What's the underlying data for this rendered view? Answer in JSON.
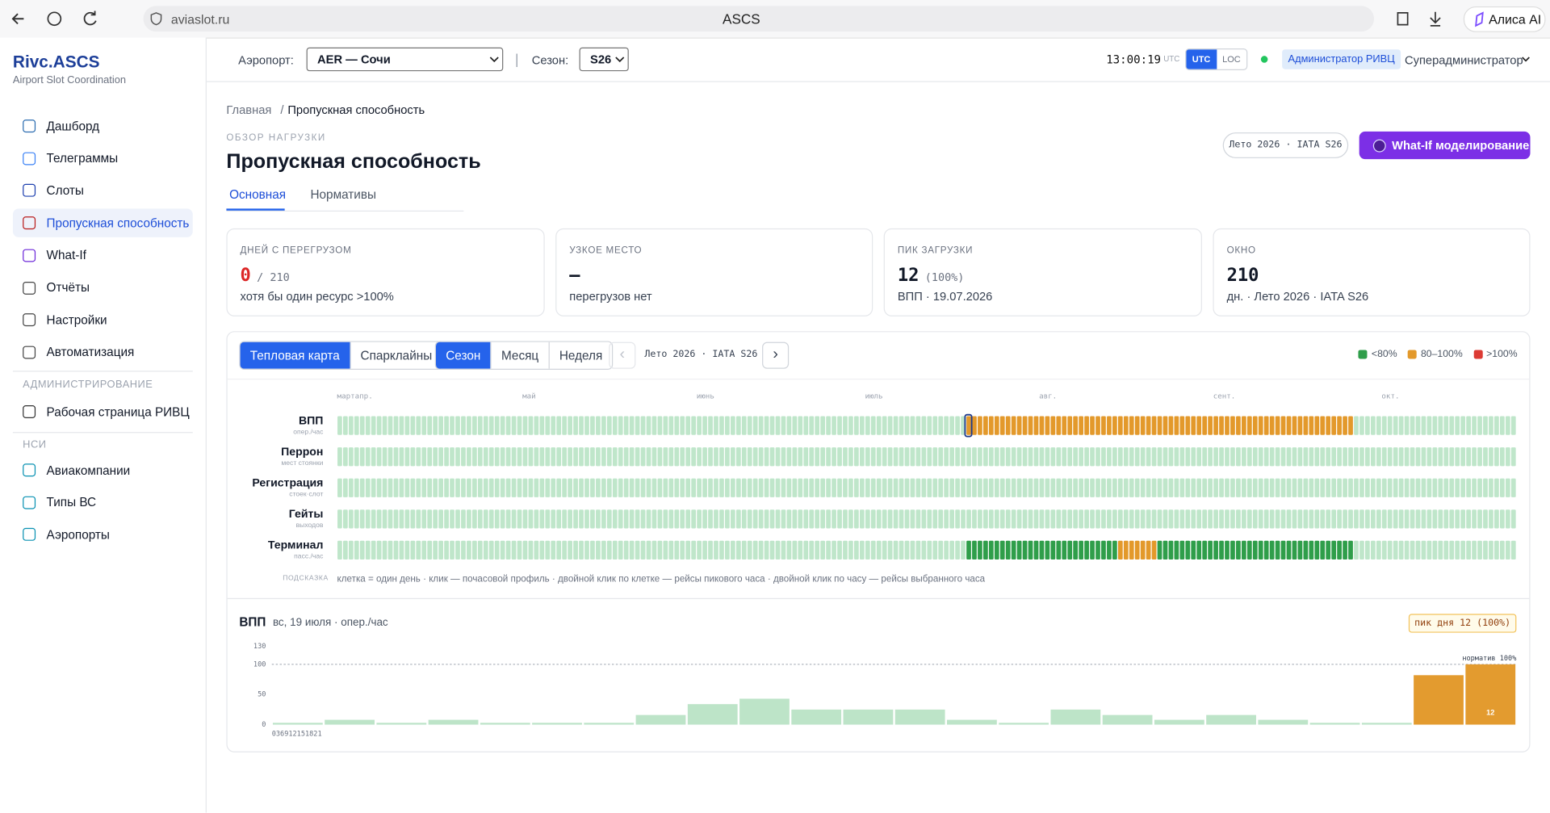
{
  "browser": {
    "url": "aviaslot.ru",
    "title": "ASCS",
    "assistant": "Алиса AI"
  },
  "sidebar": {
    "brand": "Rivc.ASCS",
    "tagline": "Airport Slot Coordination",
    "items": [
      "Дашборд",
      "Телеграммы",
      "Слоты",
      "Пропускная способность",
      "What-If",
      "Отчёты",
      "Настройки",
      "Автоматизация"
    ],
    "active_item": 3,
    "admin_heading": "АДМИНИСТРИРОВАНИЕ",
    "admin_items": [
      "Рабочая страница РИВЦ"
    ],
    "nsi_heading": "НСИ",
    "nsi_items": [
      "Авиакомпании",
      "Типы ВС",
      "Аэропорты"
    ]
  },
  "topbar": {
    "airport_label": "Аэропорт:",
    "airport": "AER — Сочи",
    "season_label": "Сезон:",
    "season": "S26",
    "time": "13:00:19",
    "time_zone": "UTC",
    "modes": [
      "UTC",
      "LOC"
    ],
    "role": "Администратор РИВЦ",
    "user": "Суперадминистратор"
  },
  "page": {
    "breadcrumb": [
      "Главная",
      "Пропускная способность"
    ],
    "overline": "ОБЗОР НАГРУЗКИ",
    "title": "Пропускная способность",
    "season_chip": "Лето 2026 · IATA S26",
    "whatif_button": "What-If моделирование",
    "tabs": [
      "Основная",
      "Нормативы"
    ]
  },
  "cards": [
    {
      "label": "ДНЕЙ С ПЕРЕГРУЗОМ",
      "value": "0",
      "suffix": "/ 210",
      "note": "хотя бы один ресурс >100%"
    },
    {
      "label": "УЗКОЕ МЕСТО",
      "value": "—",
      "note": "перегрузов нет"
    },
    {
      "label": "ПИК ЗАГРУЗКИ",
      "value": "12",
      "suffix": "(100%)",
      "note": "ВПП · 19.07.2026"
    },
    {
      "label": "ОКНО",
      "value": "210",
      "note": "дн. · Лето 2026 · IATA S26"
    }
  ],
  "heatmap": {
    "view_modes": [
      "Тепловая карта",
      "Спарклайны"
    ],
    "periods": [
      "Сезон",
      "Месяц",
      "Неделя"
    ],
    "period_label": "Лето 2026 · IATA S26",
    "levels": [
      {
        "color": "#bfe6ca"
      },
      {
        "label": "<80%",
        "color": "#2f9e4a"
      },
      {
        "label": "80–100%",
        "color": "#e3992b"
      },
      {
        "label": ">100%",
        "color": "#dc3b34"
      }
    ],
    "days": 210,
    "months": [
      {
        "label": "март",
        "day": 0
      },
      {
        "label": "апр.",
        "day": 3
      },
      {
        "label": "май",
        "day": 33
      },
      {
        "label": "июнь",
        "day": 64
      },
      {
        "label": "июль",
        "day": 94
      },
      {
        "label": "авг.",
        "day": 125
      },
      {
        "label": "сент.",
        "day": 156
      },
      {
        "label": "окт.",
        "day": 186
      }
    ],
    "selected_day": 112,
    "rows": [
      {
        "name": "ВПП",
        "unit": "опер./час",
        "runs": [
          [
            112,
            0
          ],
          [
            69,
            2
          ],
          [
            29,
            0
          ]
        ]
      },
      {
        "name": "Перрон",
        "unit": "мест стоянки",
        "runs": [
          [
            210,
            0
          ]
        ]
      },
      {
        "name": "Регистрация",
        "unit": "стоек·слот",
        "runs": [
          [
            210,
            0
          ]
        ]
      },
      {
        "name": "Гейты",
        "unit": "выходов",
        "runs": [
          [
            210,
            0
          ]
        ]
      },
      {
        "name": "Терминал",
        "unit": "пасс./час",
        "runs": [
          [
            112,
            0
          ],
          [
            27,
            1
          ],
          [
            7,
            2
          ],
          [
            35,
            1
          ],
          [
            29,
            0
          ]
        ]
      }
    ],
    "hint_label": "ПОДСКАЗКА",
    "hint": "клетка = один день · клик — почасовой профиль · двойной клик по клетке — рейсы пикового часа · двойной клик по часу — рейсы выбранного часа"
  },
  "chart_data": {
    "type": "bar",
    "title": "ВПП",
    "subtitle": "вс, 19 июля · опер./час",
    "badge": "пик дня 12 (100%)",
    "categories": [
      0,
      1,
      2,
      3,
      4,
      5,
      6,
      7,
      8,
      9,
      10,
      11,
      12,
      13,
      14,
      15,
      16,
      17,
      18,
      19,
      20,
      21,
      22,
      23
    ],
    "values": [
      3,
      8,
      3,
      8,
      3,
      3,
      3,
      16,
      34,
      43,
      25,
      25,
      25,
      8,
      3,
      25,
      16,
      8,
      16,
      8,
      3,
      3,
      82,
      100
    ],
    "colors": [
      "#bde4c8",
      "#bde4c8",
      "#bde4c8",
      "#bde4c8",
      "#bde4c8",
      "#bde4c8",
      "#bde4c8",
      "#bde4c8",
      "#bde4c8",
      "#bde4c8",
      "#bde4c8",
      "#bde4c8",
      "#bde4c8",
      "#bde4c8",
      "#bde4c8",
      "#bde4c8",
      "#bde4c8",
      "#bde4c8",
      "#bde4c8",
      "#bde4c8",
      "#bde4c8",
      "#bde4c8",
      "#e39b2f",
      "#e39b2f"
    ],
    "peak_bar_label": "12",
    "xticks": [
      0,
      3,
      6,
      9,
      12,
      15,
      18,
      21
    ],
    "ylim": [
      0,
      130
    ],
    "yticks": [
      0,
      50,
      100,
      130
    ],
    "norm": 100,
    "norm_label": "норматив 100%"
  }
}
